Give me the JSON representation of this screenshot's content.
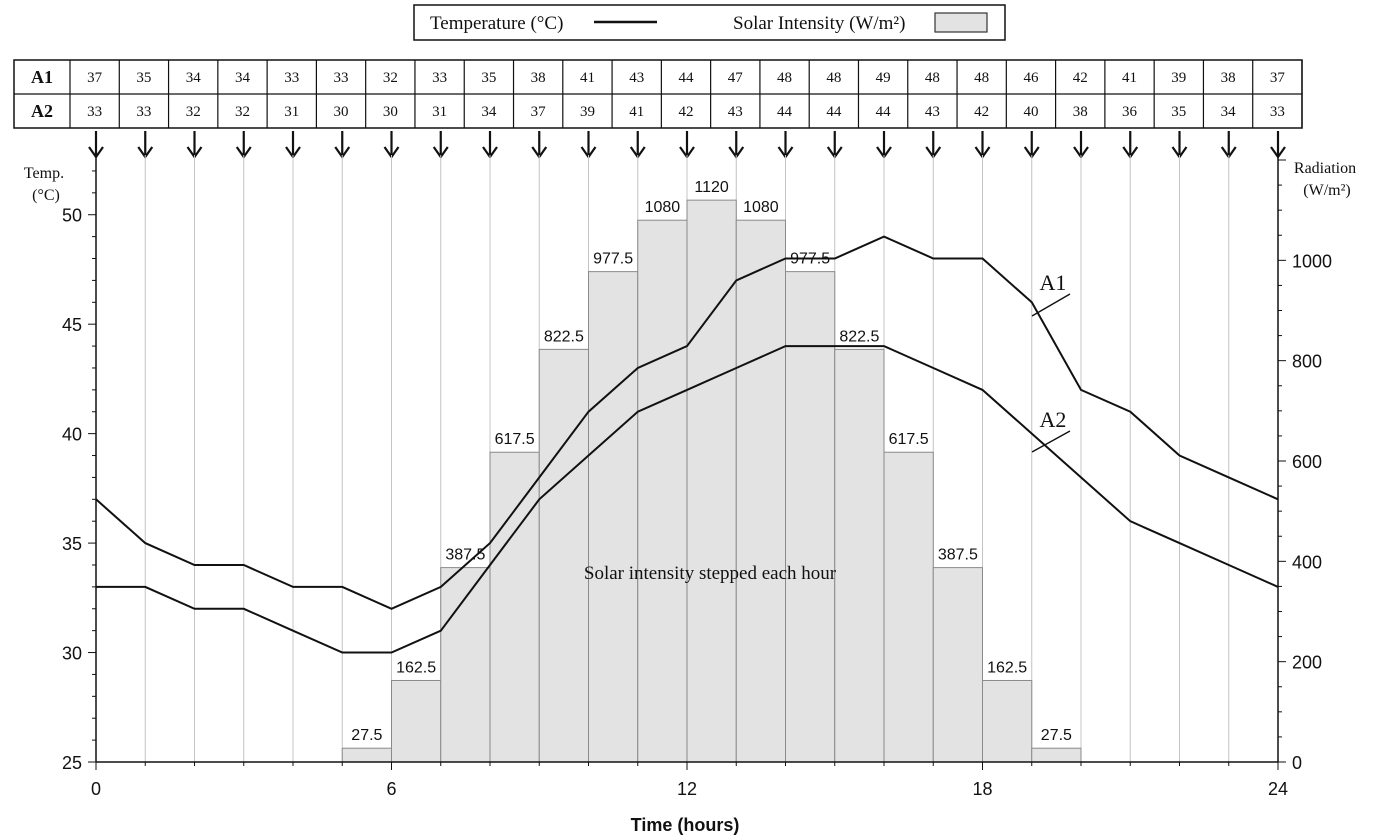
{
  "chart_data": {
    "type": "bar+line",
    "legend": {
      "items": [
        "Temperature (°C)",
        "Solar Intensity (W/m²)"
      ],
      "placement": "top-center"
    },
    "table": {
      "rows": [
        {
          "name": "A1",
          "values": [
            37,
            35,
            34,
            34,
            33,
            33,
            32,
            33,
            35,
            38,
            41,
            43,
            44,
            47,
            48,
            48,
            49,
            48,
            48,
            46,
            42,
            41,
            39,
            38,
            37
          ]
        },
        {
          "name": "A2",
          "values": [
            33,
            33,
            32,
            32,
            31,
            30,
            30,
            31,
            34,
            37,
            39,
            41,
            42,
            43,
            44,
            44,
            44,
            43,
            42,
            40,
            38,
            36,
            35,
            34,
            33
          ]
        }
      ]
    },
    "x": [
      0,
      1,
      2,
      3,
      4,
      5,
      6,
      7,
      8,
      9,
      10,
      11,
      12,
      13,
      14,
      15,
      16,
      17,
      18,
      19,
      20,
      21,
      22,
      23,
      24
    ],
    "xlabel": "Time (hours)",
    "xticks": [
      0,
      6,
      12,
      18,
      24
    ],
    "xlim": [
      0,
      24
    ],
    "ylabel": "Temp. (°C)",
    "yticks": [
      25,
      30,
      35,
      40,
      45,
      50
    ],
    "ylim": [
      25,
      52.5
    ],
    "y2label": "Radiation (W/m²)",
    "y2ticks": [
      0,
      200,
      400,
      600,
      800,
      1000
    ],
    "y2lim": [
      0,
      1200
    ],
    "series": [
      {
        "name": "A1",
        "type": "line",
        "axis": "left",
        "values": [
          37,
          35,
          34,
          34,
          33,
          33,
          32,
          33,
          35,
          38,
          41,
          43,
          44,
          47,
          48,
          48,
          49,
          48,
          48,
          46,
          42,
          41,
          39,
          38,
          37
        ]
      },
      {
        "name": "A2",
        "type": "line",
        "axis": "left",
        "values": [
          33,
          33,
          32,
          32,
          31,
          30,
          30,
          31,
          34,
          37,
          39,
          41,
          42,
          43,
          44,
          44,
          44,
          43,
          42,
          40,
          38,
          36,
          35,
          34,
          33
        ]
      }
    ],
    "bars": {
      "axis": "right",
      "type": "step",
      "starts": [
        5,
        6,
        7,
        8,
        9,
        10,
        11,
        12,
        13,
        14,
        15,
        16,
        17,
        18,
        19
      ],
      "values": [
        27.5,
        162.5,
        387.5,
        617.5,
        822.5,
        977.5,
        1080,
        1120,
        1080,
        977.5,
        822.5,
        617.5,
        387.5,
        162.5,
        27.5
      ],
      "labels": [
        "27.5",
        "162.5",
        "387.5",
        "617.5",
        "822.5",
        "977.5",
        "1080",
        "1120",
        "1080",
        "977.5",
        "822.5",
        "617.5",
        "387.5",
        "162.5",
        "27.5"
      ]
    },
    "annotation": "Solar intensity stepped each hour",
    "grid": {
      "vertical_hourly": true,
      "horizontal": false
    },
    "colors": {
      "bar_fill": "#e3e3e3",
      "bar_edge": "#8a8a8a",
      "line": "#111111",
      "grid": "#c4c4c4"
    }
  }
}
